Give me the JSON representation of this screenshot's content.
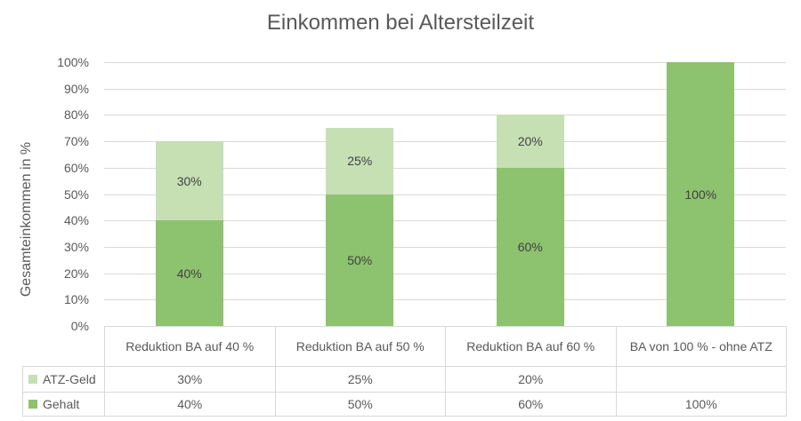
{
  "chart_data": {
    "type": "bar",
    "stacked": true,
    "title": "Einkommen bei Altersteilzeit",
    "xlabel": "",
    "ylabel": "Gesamteinkommen in %",
    "ylim": [
      0,
      100
    ],
    "yticks": [
      "0%",
      "10%",
      "20%",
      "30%",
      "40%",
      "50%",
      "60%",
      "70%",
      "80%",
      "90%",
      "100%"
    ],
    "grid": true,
    "legend_position": "data-table-left",
    "categories": [
      "Reduktion BA auf 40 %",
      "Reduktion BA auf 50 %",
      "Reduktion BA auf 60 %",
      "BA von 100 % - ohne ATZ"
    ],
    "series": [
      {
        "name": "Gehalt",
        "values": [
          40,
          50,
          60,
          100
        ],
        "labels": [
          "40%",
          "50%",
          "60%",
          "100%"
        ],
        "color": "#8dc26f"
      },
      {
        "name": "ATZ-Geld",
        "values": [
          30,
          25,
          20,
          null
        ],
        "labels": [
          "30%",
          "25%",
          "20%",
          ""
        ],
        "color": "#c6e0b4"
      }
    ]
  },
  "table": {
    "rows": [
      {
        "legend": "ATZ-Geld",
        "values": [
          "30%",
          "25%",
          "20%",
          ""
        ]
      },
      {
        "legend": "Gehalt",
        "values": [
          "40%",
          "50%",
          "60%",
          "100%"
        ]
      }
    ]
  }
}
